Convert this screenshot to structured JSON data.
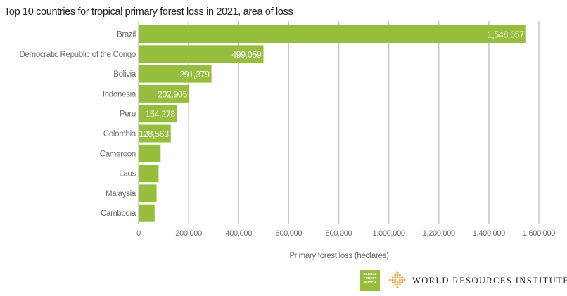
{
  "chart_data": {
    "type": "bar",
    "orientation": "horizontal",
    "title": "Top 10 countries for tropical primary forest loss in 2021, area of loss",
    "xlabel": "Primary forest loss (hectares)",
    "categories": [
      "Brazil",
      "Democratic Republic of the Congo",
      "Bolivia",
      "Indonesia",
      "Peru",
      "Colombia",
      "Cameroon",
      "Laos",
      "Malaysia",
      "Cambodia"
    ],
    "values": [
      1548657,
      499059,
      291379,
      202905,
      154278,
      128563,
      88000,
      80000,
      72000,
      64000
    ],
    "data_labels": [
      "1,548,657",
      "499,059",
      "291,379",
      "202,905",
      "154,278",
      "128,563",
      "",
      "",
      "",
      ""
    ],
    "xlim": [
      0,
      1600000
    ],
    "xticks": [
      0,
      200000,
      400000,
      600000,
      800000,
      1000000,
      1200000,
      1400000,
      1600000
    ],
    "xtick_labels": [
      "0",
      "200,000",
      "400,000",
      "600,000",
      "800,000",
      "1,000,000",
      "1,200,000",
      "1,400,000",
      "1,600,000"
    ],
    "grid": "vertical",
    "bar_color": "#97bd3d"
  },
  "logos": {
    "gfw_text": [
      "GLOBAL",
      "FOREST",
      "WATCH"
    ],
    "wri_name": "WORLD RESOURCES INSTITUTE",
    "gfw_color": "#97bd3d",
    "wri_color": "#e8a33d"
  }
}
